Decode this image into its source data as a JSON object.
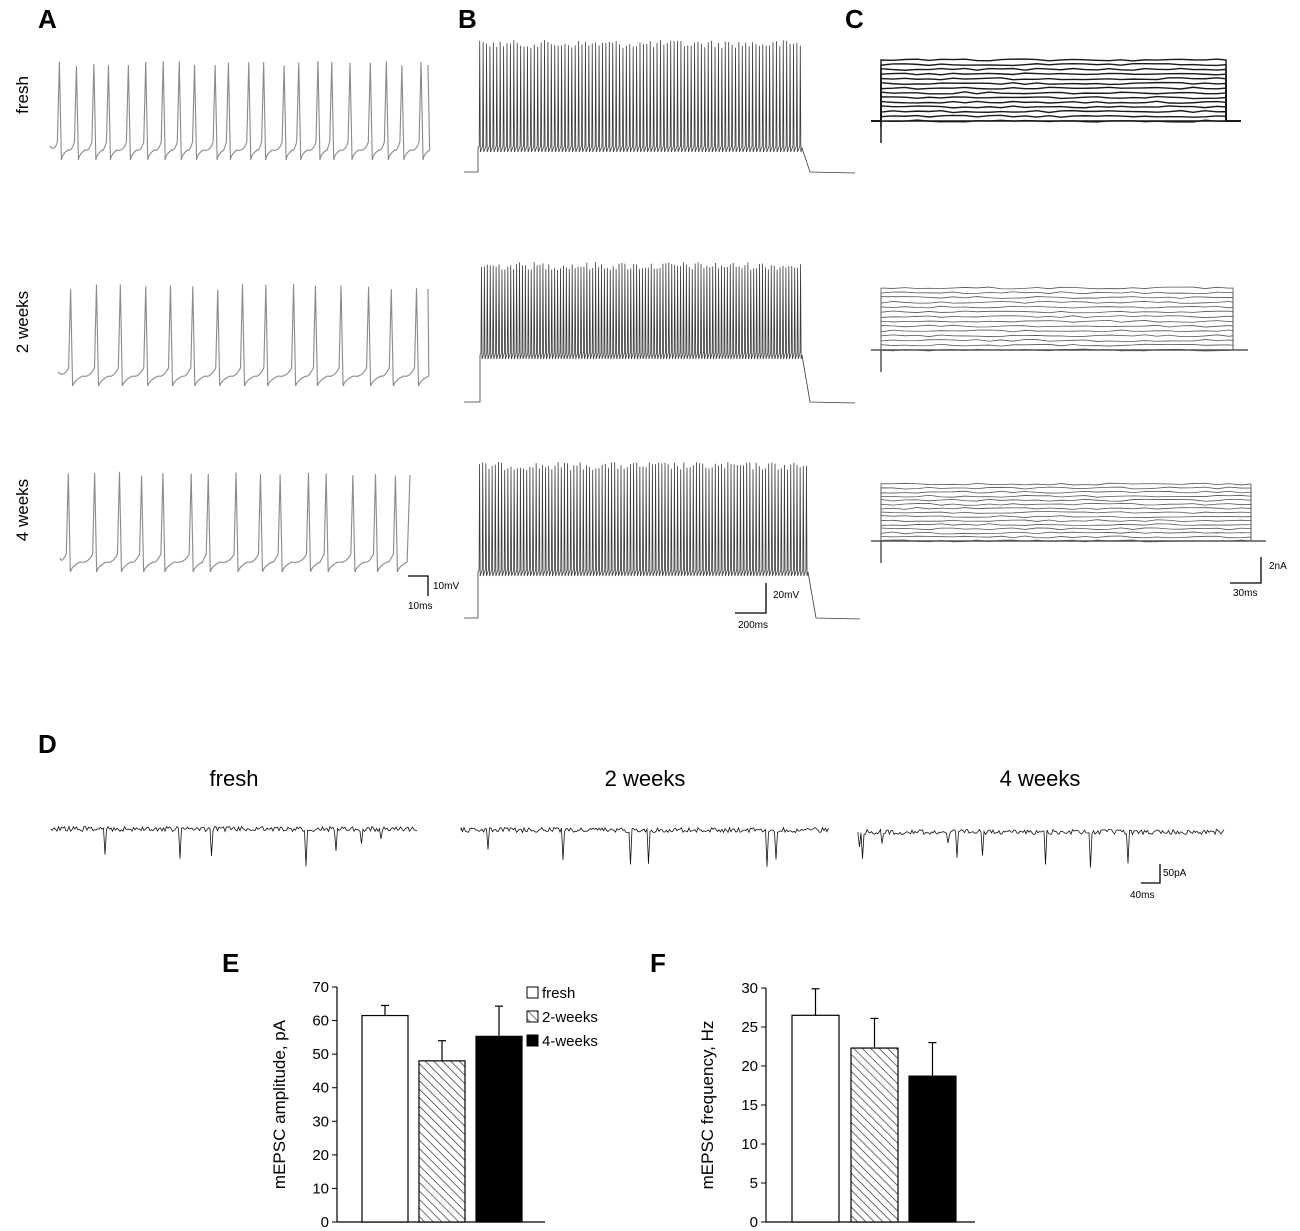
{
  "panels": {
    "A": "A",
    "B": "B",
    "C": "C",
    "D": "D",
    "E": "E",
    "F": "F"
  },
  "rows": [
    "fresh",
    "2 weeks",
    "4 weeks"
  ],
  "scalebars": {
    "A": {
      "v": "10mV",
      "h": "10ms"
    },
    "B": {
      "v": "20mV",
      "h": "200ms"
    },
    "C": {
      "v": "2nA",
      "h": "30ms"
    },
    "D": {
      "v": "50pA",
      "h": "40ms"
    }
  },
  "trace_colors": {
    "A": "#8a8a8a",
    "B": "#3a3a3a",
    "C": "#1a1a1a",
    "D": "#111111"
  },
  "chart_data": [
    {
      "panel": "E",
      "type": "bar",
      "categories": [
        "fresh",
        "2-weeks",
        "4-weeks"
      ],
      "values": [
        61.5,
        48,
        55.3
      ],
      "errors": [
        3,
        6,
        9
      ],
      "ylabel": "mEPSC amplitude, pA",
      "ylim": [
        0,
        70
      ],
      "yticks": [
        0,
        10,
        20,
        30,
        40,
        50,
        60,
        70
      ],
      "legend": [
        "fresh",
        "2-weeks",
        "4-weeks"
      ],
      "legend_position": "top-right",
      "fills": [
        "white",
        "hatched",
        "black"
      ]
    },
    {
      "panel": "F",
      "type": "bar",
      "categories": [
        "fresh",
        "2-weeks",
        "4-weeks"
      ],
      "values": [
        26.5,
        22.3,
        18.7
      ],
      "errors": [
        3.4,
        3.8,
        4.3
      ],
      "ylabel": "mEPSC frequency, Hz",
      "ylim": [
        0,
        30
      ],
      "yticks": [
        0,
        5,
        10,
        15,
        20,
        25,
        30
      ],
      "fills": [
        "white",
        "hatched",
        "black"
      ]
    }
  ]
}
